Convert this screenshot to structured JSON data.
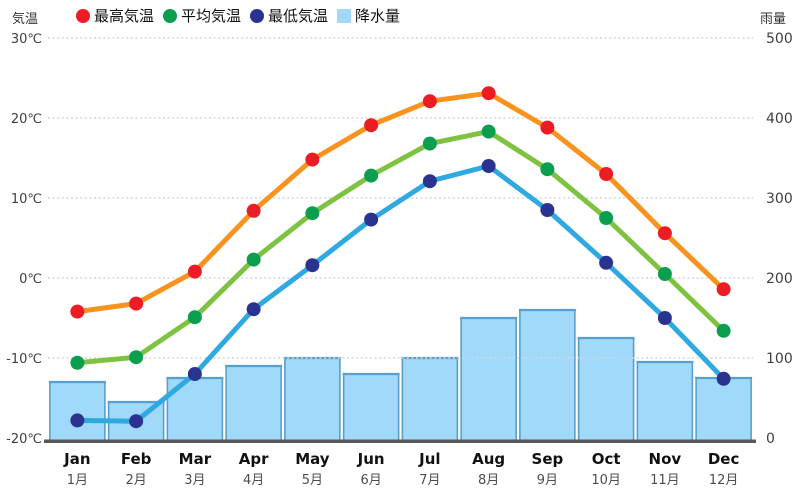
{
  "chart_data": {
    "type": "line+bar",
    "left_axis": {
      "label": "気温",
      "ticks": [
        "30℃",
        "20℃",
        "10℃",
        "0℃",
        "-10℃",
        "-20℃"
      ],
      "tick_values": [
        30,
        20,
        10,
        0,
        -10,
        -20
      ],
      "min": -20,
      "max": 30,
      "grid": "dotted"
    },
    "right_axis": {
      "label": "雨量",
      "ticks": [
        "500",
        "400",
        "300",
        "200",
        "100",
        "0"
      ],
      "tick_values": [
        500,
        400,
        300,
        200,
        100,
        0
      ],
      "min": 0,
      "max": 500
    },
    "categories_en": [
      "Jan",
      "Feb",
      "Mar",
      "Apr",
      "May",
      "Jun",
      "Jul",
      "Aug",
      "Sep",
      "Oct",
      "Nov",
      "Dec"
    ],
    "categories_ja": [
      "1月",
      "2月",
      "3月",
      "4月",
      "5月",
      "6月",
      "7月",
      "8月",
      "9月",
      "10月",
      "11月",
      "12月"
    ],
    "series": [
      {
        "name": "最高気温",
        "type": "line",
        "line_color": "#f7931e",
        "dot_color": "#ec1c24",
        "values": [
          -4.2,
          -3.2,
          0.8,
          8.4,
          14.8,
          19.1,
          22.1,
          23.1,
          18.8,
          13.0,
          5.6,
          -1.4
        ]
      },
      {
        "name": "平均気温",
        "type": "line",
        "line_color": "#7fc242",
        "dot_color": "#0a9e4e",
        "values": [
          -10.6,
          -9.9,
          -4.9,
          2.3,
          8.1,
          12.8,
          16.8,
          18.3,
          13.6,
          7.5,
          0.5,
          -6.6
        ]
      },
      {
        "name": "最低気温",
        "type": "line",
        "line_color": "#30a8e0",
        "dot_color": "#2b3390",
        "values": [
          -17.8,
          -17.9,
          -12.0,
          -3.9,
          1.6,
          7.3,
          12.1,
          14.0,
          8.5,
          1.9,
          -5.0,
          -12.6
        ]
      },
      {
        "name": "降水量",
        "type": "bar",
        "fill_color": "#a0d9f9",
        "border_color": "#5a9fc9",
        "values": [
          70,
          45,
          75,
          90,
          100,
          80,
          100,
          150,
          160,
          125,
          95,
          75
        ]
      }
    ],
    "colors": {
      "grid": "#d5d5d5",
      "baseline": "#58585a",
      "month_en": "#111111",
      "month_ja": "#4d4d4d",
      "tick_text": "#404040"
    }
  }
}
